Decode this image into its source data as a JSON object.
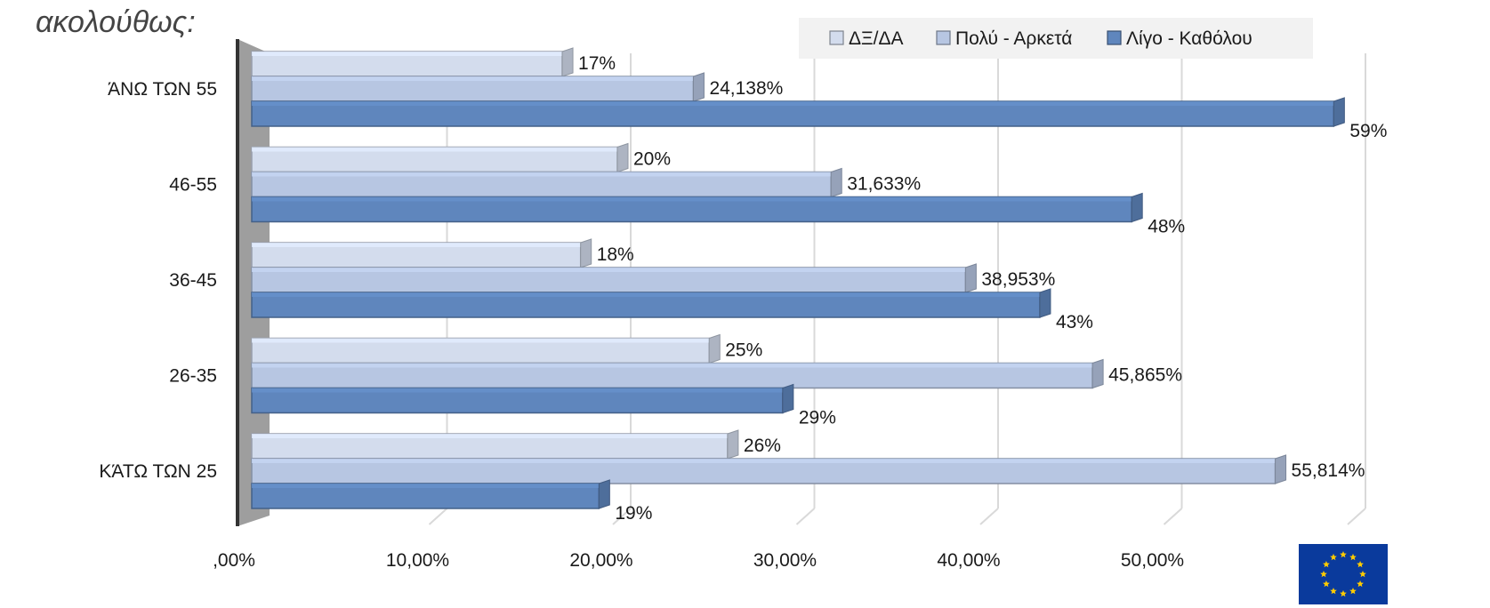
{
  "header": {
    "title_fragment": "ακολούθως:"
  },
  "logo": {
    "name": "eu-flag-icon",
    "background": "#0a3a9c",
    "stars": "#ffcc00"
  },
  "chart_data": {
    "type": "bar",
    "orientation": "horizontal",
    "categories": [
      "ΆΝΩ ΤΩΝ 55",
      "46-55",
      "36-45",
      "26-35",
      "ΚΆΤΩ ΤΩΝ 25"
    ],
    "series": [
      {
        "name": "ΔΞ/ΔΑ",
        "values": [
          17,
          20,
          18,
          25,
          26
        ],
        "labels": [
          "17%",
          "20%",
          "18%",
          "25%",
          "26%"
        ],
        "color": "#d3dced"
      },
      {
        "name": "Πολύ - Αρκετά",
        "values": [
          24.138,
          31.633,
          38.953,
          45.865,
          55.814
        ],
        "labels": [
          "24,138%",
          "31,633%",
          "38,953%",
          "45,865%",
          "55,814%"
        ],
        "color": "#b7c6e2"
      },
      {
        "name": "Λίγο - Καθόλου",
        "values": [
          59,
          48,
          43,
          29,
          19
        ],
        "labels": [
          "59%",
          "48%",
          "43%",
          "29%",
          "19%"
        ],
        "color": "#5f86bd"
      }
    ],
    "x_ticks": [
      0,
      10,
      20,
      30,
      40,
      50
    ],
    "x_tick_labels": [
      ",00%",
      "10,00%",
      "20,00%",
      "30,00%",
      "40,00%",
      "50,00%"
    ],
    "xlim": [
      0,
      60
    ],
    "grid": true,
    "legend_position": "top-right"
  }
}
